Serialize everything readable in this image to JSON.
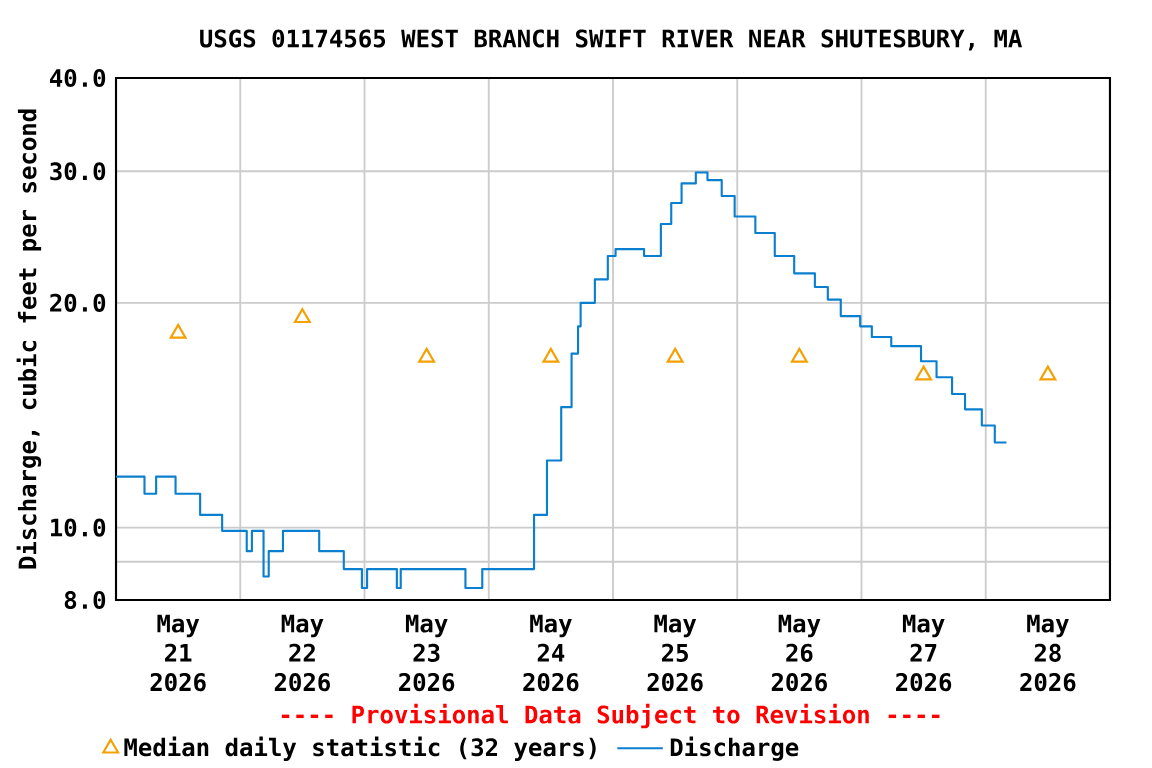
{
  "chart_data": {
    "type": "step",
    "title": "USGS 01174565 WEST BRANCH SWIFT RIVER NEAR SHUTESBURY, MA",
    "ylabel": "Discharge, cubic feet per second",
    "annotations": [
      "---- Provisional Data Subject to Revision ----"
    ],
    "log": "y",
    "grid": true,
    "legend": "bottom",
    "xlim": [
      "2026-05-21T00:00",
      "2026-05-29T00:00"
    ],
    "xticks": [
      {
        "value": "2026-05-21T12:00",
        "label": "May 21 2026"
      },
      {
        "value": "2026-05-22T12:00",
        "label": "May 22 2026"
      },
      {
        "value": "2026-05-23T12:00",
        "label": "May 23 2026"
      },
      {
        "value": "2026-05-24T12:00",
        "label": "May 24 2026"
      },
      {
        "value": "2026-05-25T12:00",
        "label": "May 25 2026"
      },
      {
        "value": "2026-05-26T12:00",
        "label": "May 26 2026"
      },
      {
        "value": "2026-05-27T12:00",
        "label": "May 27 2026"
      },
      {
        "value": "2026-05-28T12:00",
        "label": "May 28 2026"
      },
      {
        "value": "2026-05-22T00:00",
        "label": null
      },
      {
        "value": "2026-05-23T00:00",
        "label": null
      },
      {
        "value": "2026-05-24T00:00",
        "label": null
      },
      {
        "value": "2026-05-25T00:00",
        "label": null
      },
      {
        "value": "2026-05-26T00:00",
        "label": null
      },
      {
        "value": "2026-05-27T00:00",
        "label": null
      },
      {
        "value": "2026-05-28T00:00",
        "label": null
      }
    ],
    "ylim": [
      8,
      40
    ],
    "yticks": [
      {
        "value": 8,
        "label": "8.0"
      },
      {
        "value": 9,
        "label": null
      },
      {
        "value": 10,
        "label": "10.0"
      },
      {
        "value": 20,
        "label": "20.0"
      },
      {
        "value": 30,
        "label": "30.0"
      },
      {
        "value": 40,
        "label": "40.0"
      }
    ],
    "series": [
      {
        "name": "Median daily statistic (32 years)",
        "type": "scatter",
        "marker": "triangle",
        "color": "#f5a000",
        "x": [
          "2026-05-21T12:00",
          "2026-05-22T12:00",
          "2026-05-23T12:00",
          "2026-05-24T12:00",
          "2026-05-25T12:00",
          "2026-05-26T12:00",
          "2026-05-27T12:00",
          "2026-05-28T12:00"
        ],
        "values": [
          18.2,
          19.1,
          16.9,
          16.9,
          16.9,
          16.9,
          16.0,
          16.0
        ]
      },
      {
        "name": "Discharge",
        "color": "#0a7fd0",
        "x": [
          "2026-05-21T00:00",
          "2026-05-21T05:30",
          "2026-05-21T07:45",
          "2026-05-21T11:30",
          "2026-05-21T16:15",
          "2026-05-21T20:30",
          "2026-05-22T01:15",
          "2026-05-22T02:15",
          "2026-05-22T04:30",
          "2026-05-22T05:30",
          "2026-05-22T08:15",
          "2026-05-22T15:15",
          "2026-05-22T20:00",
          "2026-05-22T23:30",
          "2026-05-23T00:30",
          "2026-05-23T06:15",
          "2026-05-23T07:00",
          "2026-05-23T19:30",
          "2026-05-23T22:45",
          "2026-05-24T07:30",
          "2026-05-24T08:45",
          "2026-05-24T11:15",
          "2026-05-24T14:00",
          "2026-05-24T16:00",
          "2026-05-24T17:15",
          "2026-05-24T17:45",
          "2026-05-24T20:30",
          "2026-05-24T23:00",
          "2026-05-25T00:30",
          "2026-05-25T06:00",
          "2026-05-25T09:15",
          "2026-05-25T11:15",
          "2026-05-25T13:15",
          "2026-05-25T16:00",
          "2026-05-25T18:15",
          "2026-05-25T21:00",
          "2026-05-25T23:30",
          "2026-05-26T03:30",
          "2026-05-26T07:15",
          "2026-05-26T11:00",
          "2026-05-26T15:00",
          "2026-05-26T17:30",
          "2026-05-26T20:00",
          "2026-05-26T23:45",
          "2026-05-27T02:00",
          "2026-05-27T05:45",
          "2026-05-27T11:30",
          "2026-05-27T14:30",
          "2026-05-27T17:30",
          "2026-05-27T20:00",
          "2026-05-27T23:15",
          "2026-05-28T01:45",
          "2026-05-28T04:00"
        ],
        "values": [
          11.7,
          11.1,
          11.7,
          11.1,
          10.4,
          9.9,
          9.3,
          9.9,
          8.6,
          9.3,
          9.9,
          9.3,
          8.8,
          8.3,
          8.8,
          8.3,
          8.8,
          8.3,
          8.8,
          8.8,
          10.4,
          12.3,
          14.5,
          17.1,
          18.6,
          20.0,
          21.5,
          23.1,
          23.6,
          23.1,
          25.5,
          27.2,
          28.9,
          29.9,
          29.2,
          27.8,
          26.1,
          24.8,
          23.1,
          21.9,
          21.0,
          20.2,
          19.2,
          18.6,
          18.0,
          17.5,
          16.7,
          15.9,
          15.1,
          14.4,
          13.7,
          13.0,
          13.0
        ]
      }
    ]
  }
}
